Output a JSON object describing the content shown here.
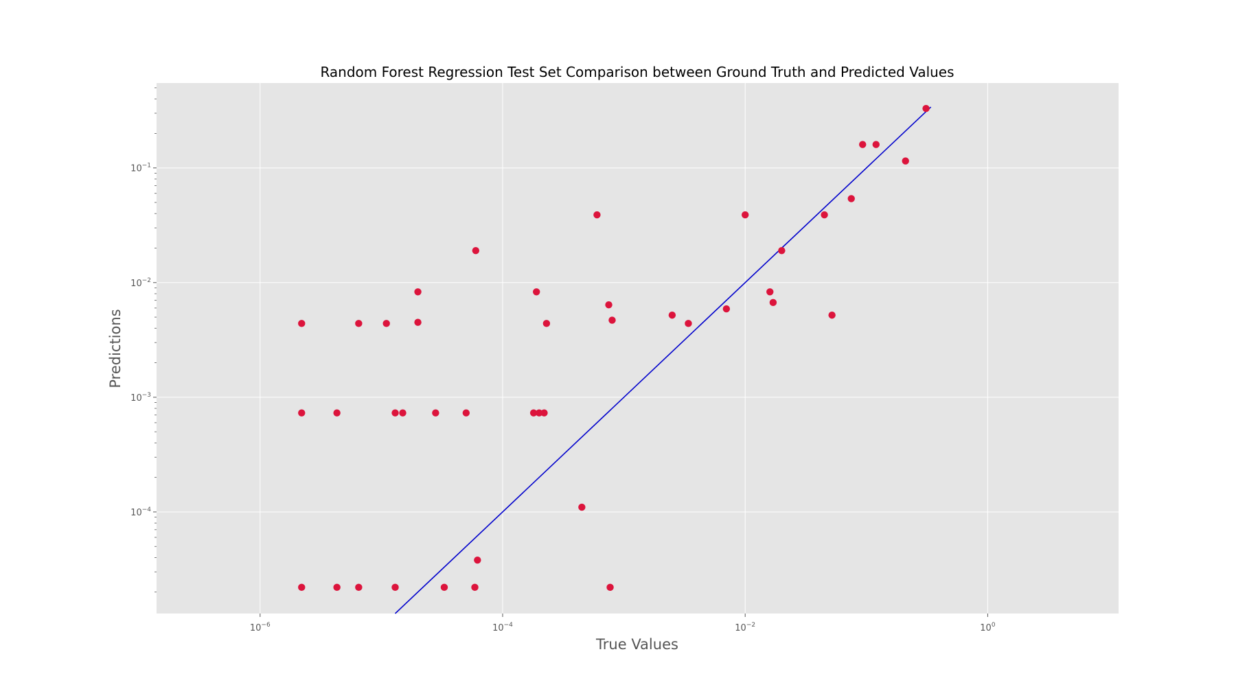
{
  "chart_data": {
    "type": "scatter",
    "title": "Random Forest Regression Test Set Comparison between Ground Truth and Predicted Values",
    "xlabel": "True Values",
    "ylabel": "Predictions",
    "xscale": "log",
    "yscale": "log",
    "xlim": [
      1.4e-07,
      12
    ],
    "ylim": [
      1.3e-05,
      0.55
    ],
    "grid": true,
    "colors": {
      "points": "#dc143c",
      "line": "#0000cc",
      "background": "#e5e5e5",
      "grid": "#ffffff"
    },
    "x_ticks": [
      {
        "value": 1e-06,
        "base": "10",
        "exp": "−6"
      },
      {
        "value": 0.0001,
        "base": "10",
        "exp": "−4"
      },
      {
        "value": 0.01,
        "base": "10",
        "exp": "−2"
      },
      {
        "value": 1,
        "base": "10",
        "exp": "0"
      }
    ],
    "y_ticks": [
      {
        "value": 0.0001,
        "base": "10",
        "exp": "−4"
      },
      {
        "value": 0.001,
        "base": "10",
        "exp": "−3"
      },
      {
        "value": 0.01,
        "base": "10",
        "exp": "−2"
      },
      {
        "value": 0.1,
        "base": "10",
        "exp": "−1"
      }
    ],
    "reference_line": {
      "x": [
        1.3e-05,
        0.34
      ],
      "y": [
        1.3e-05,
        0.34
      ]
    },
    "points": [
      {
        "x": 2.2e-06,
        "y": 2.2e-05
      },
      {
        "x": 4.3e-06,
        "y": 2.2e-05
      },
      {
        "x": 6.5e-06,
        "y": 2.2e-05
      },
      {
        "x": 1.3e-05,
        "y": 2.2e-05
      },
      {
        "x": 3.3e-05,
        "y": 2.2e-05
      },
      {
        "x": 5.9e-05,
        "y": 2.2e-05
      },
      {
        "x": 0.00077,
        "y": 2.2e-05
      },
      {
        "x": 6.2e-05,
        "y": 3.8e-05
      },
      {
        "x": 0.00045,
        "y": 0.00011
      },
      {
        "x": 2.2e-06,
        "y": 0.00073
      },
      {
        "x": 4.3e-06,
        "y": 0.00073
      },
      {
        "x": 1.3e-05,
        "y": 0.00073
      },
      {
        "x": 1.5e-05,
        "y": 0.00073
      },
      {
        "x": 2.8e-05,
        "y": 0.00073
      },
      {
        "x": 5e-05,
        "y": 0.00073
      },
      {
        "x": 0.00018,
        "y": 0.00073
      },
      {
        "x": 0.0002,
        "y": 0.00073
      },
      {
        "x": 0.00022,
        "y": 0.00073
      },
      {
        "x": 2.2e-06,
        "y": 0.0044
      },
      {
        "x": 6.5e-06,
        "y": 0.0044
      },
      {
        "x": 1.1e-05,
        "y": 0.0044
      },
      {
        "x": 2e-05,
        "y": 0.0045
      },
      {
        "x": 2e-05,
        "y": 0.0083
      },
      {
        "x": 6e-05,
        "y": 0.019
      },
      {
        "x": 0.00019,
        "y": 0.0083
      },
      {
        "x": 0.00023,
        "y": 0.0044
      },
      {
        "x": 0.0006,
        "y": 0.039
      },
      {
        "x": 0.00075,
        "y": 0.0064
      },
      {
        "x": 0.0008,
        "y": 0.0047
      },
      {
        "x": 0.0025,
        "y": 0.0052
      },
      {
        "x": 0.0034,
        "y": 0.0044
      },
      {
        "x": 0.007,
        "y": 0.0059
      },
      {
        "x": 0.01,
        "y": 0.039
      },
      {
        "x": 0.016,
        "y": 0.0083
      },
      {
        "x": 0.017,
        "y": 0.0067
      },
      {
        "x": 0.02,
        "y": 0.019
      },
      {
        "x": 0.045,
        "y": 0.039
      },
      {
        "x": 0.052,
        "y": 0.0052
      },
      {
        "x": 0.075,
        "y": 0.054
      },
      {
        "x": 0.093,
        "y": 0.16
      },
      {
        "x": 0.12,
        "y": 0.16
      },
      {
        "x": 0.21,
        "y": 0.115
      },
      {
        "x": 0.31,
        "y": 0.33
      }
    ]
  }
}
